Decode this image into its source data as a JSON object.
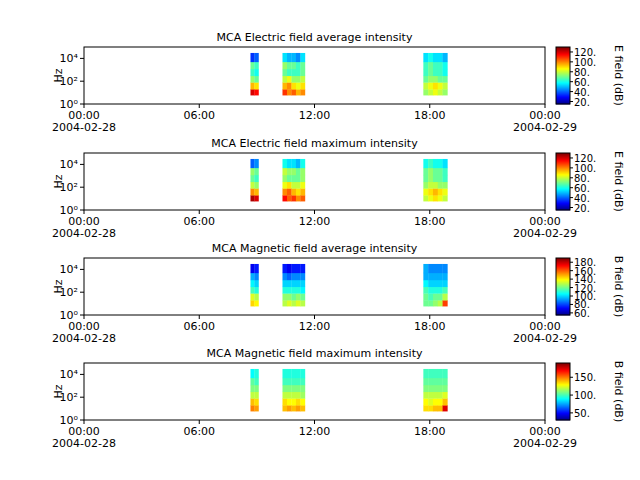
{
  "chart_data": [
    {
      "type": "heatmap",
      "title": "MCA  Electric field average intensity",
      "y_label": "Hz",
      "log": "y",
      "xlim": [
        "2004-02-28 00:00",
        "2004-02-29 00:00"
      ],
      "xticks": [
        {
          "value": "2004-02-28 00:00",
          "label": "00:00\n2004-02-28"
        },
        {
          "value": "2004-02-28 06:00",
          "label": "06:00"
        },
        {
          "value": "2004-02-28 12:00",
          "label": "12:00"
        },
        {
          "value": "2004-02-28 18:00",
          "label": "18:00"
        },
        {
          "value": "2004-02-29 00:00",
          "label": "00:00\n2004-02-29"
        }
      ],
      "ylim": [
        1,
        100000
      ],
      "yticks": [
        {
          "value": 1,
          "label": "10⁰"
        },
        {
          "value": 100,
          "label": "10²"
        },
        {
          "value": 10000,
          "label": "10⁴"
        }
      ],
      "heatmap": {
        "time_bins": [
          [
            "2004-02-28 08:40",
            "2004-02-28 08:52"
          ],
          [
            "2004-02-28 08:52",
            "2004-02-28 09:05"
          ],
          [
            "2004-02-28 10:20",
            "2004-02-28 10:34"
          ],
          [
            "2004-02-28 10:34",
            "2004-02-28 10:48"
          ],
          [
            "2004-02-28 10:48",
            "2004-02-28 11:02"
          ],
          [
            "2004-02-28 11:02",
            "2004-02-28 11:16"
          ],
          [
            "2004-02-28 11:16",
            "2004-02-28 11:30"
          ],
          [
            "2004-02-28 17:40",
            "2004-02-28 17:55"
          ],
          [
            "2004-02-28 17:55",
            "2004-02-28 18:10"
          ],
          [
            "2004-02-28 18:10",
            "2004-02-28 18:25"
          ],
          [
            "2004-02-28 18:25",
            "2004-02-28 18:40"
          ],
          [
            "2004-02-28 18:40",
            "2004-02-28 18:55"
          ]
        ],
        "freq_edges": [
          6,
          20,
          80,
          300,
          1200,
          5000,
          30000
        ],
        "values": [
          [
            120,
            95,
            75,
            65,
            70,
            35
          ],
          [
            115,
            90,
            70,
            60,
            65,
            40
          ],
          [
            110,
            95,
            80,
            70,
            75,
            55
          ],
          [
            100,
            100,
            85,
            65,
            70,
            50
          ],
          [
            105,
            90,
            75,
            65,
            70,
            50
          ],
          [
            95,
            85,
            75,
            65,
            65,
            45
          ],
          [
            100,
            90,
            80,
            70,
            70,
            55
          ],
          [
            75,
            80,
            70,
            65,
            65,
            55
          ],
          [
            80,
            85,
            75,
            70,
            70,
            60
          ],
          [
            85,
            90,
            75,
            65,
            65,
            55
          ],
          [
            80,
            85,
            70,
            65,
            65,
            55
          ],
          [
            75,
            80,
            70,
            60,
            60,
            50
          ]
        ]
      },
      "colorbar": {
        "label": "E field (dB)",
        "range": [
          15,
          130
        ],
        "ticks": [
          {
            "value": 20,
            "label": "20."
          },
          {
            "value": 40,
            "label": "40."
          },
          {
            "value": 60,
            "label": "60."
          },
          {
            "value": 80,
            "label": "80."
          },
          {
            "value": 100,
            "label": "100."
          },
          {
            "value": 120,
            "label": "120."
          }
        ]
      }
    },
    {
      "type": "heatmap",
      "title": "MCA  Electric field maximum intensity",
      "y_label": "Hz",
      "log": "y",
      "xlim": [
        "2004-02-28 00:00",
        "2004-02-29 00:00"
      ],
      "xticks": [
        {
          "value": "2004-02-28 00:00",
          "label": "00:00\n2004-02-28"
        },
        {
          "value": "2004-02-28 06:00",
          "label": "06:00"
        },
        {
          "value": "2004-02-28 12:00",
          "label": "12:00"
        },
        {
          "value": "2004-02-28 18:00",
          "label": "18:00"
        },
        {
          "value": "2004-02-29 00:00",
          "label": "00:00\n2004-02-29"
        }
      ],
      "ylim": [
        1,
        100000
      ],
      "yticks": [
        {
          "value": 1,
          "label": "10⁰"
        },
        {
          "value": 100,
          "label": "10²"
        },
        {
          "value": 10000,
          "label": "10⁴"
        }
      ],
      "heatmap": {
        "time_bins": [
          [
            "2004-02-28 08:40",
            "2004-02-28 08:52"
          ],
          [
            "2004-02-28 08:52",
            "2004-02-28 09:05"
          ],
          [
            "2004-02-28 10:20",
            "2004-02-28 10:34"
          ],
          [
            "2004-02-28 10:34",
            "2004-02-28 10:48"
          ],
          [
            "2004-02-28 10:48",
            "2004-02-28 11:02"
          ],
          [
            "2004-02-28 11:02",
            "2004-02-28 11:16"
          ],
          [
            "2004-02-28 11:16",
            "2004-02-28 11:30"
          ],
          [
            "2004-02-28 17:40",
            "2004-02-28 17:55"
          ],
          [
            "2004-02-28 17:55",
            "2004-02-28 18:10"
          ],
          [
            "2004-02-28 18:10",
            "2004-02-28 18:25"
          ],
          [
            "2004-02-28 18:25",
            "2004-02-28 18:40"
          ],
          [
            "2004-02-28 18:40",
            "2004-02-28 18:55"
          ]
        ],
        "freq_edges": [
          6,
          20,
          80,
          300,
          1200,
          5000,
          30000
        ],
        "values": [
          [
            125,
            100,
            80,
            70,
            75,
            40
          ],
          [
            120,
            95,
            75,
            65,
            70,
            45
          ],
          [
            115,
            100,
            85,
            75,
            80,
            60
          ],
          [
            105,
            105,
            90,
            70,
            75,
            55
          ],
          [
            110,
            95,
            80,
            70,
            75,
            55
          ],
          [
            100,
            90,
            80,
            70,
            70,
            50
          ],
          [
            105,
            95,
            85,
            75,
            75,
            60
          ],
          [
            80,
            85,
            75,
            70,
            70,
            60
          ],
          [
            85,
            90,
            80,
            75,
            75,
            65
          ],
          [
            90,
            95,
            80,
            70,
            70,
            60
          ],
          [
            85,
            90,
            75,
            70,
            70,
            60
          ],
          [
            80,
            85,
            75,
            65,
            65,
            55
          ]
        ]
      },
      "colorbar": {
        "label": "E field (dB)",
        "range": [
          15,
          130
        ],
        "ticks": [
          {
            "value": 20,
            "label": "20."
          },
          {
            "value": 40,
            "label": "40."
          },
          {
            "value": 60,
            "label": "60."
          },
          {
            "value": 80,
            "label": "80."
          },
          {
            "value": 100,
            "label": "100."
          },
          {
            "value": 120,
            "label": "120."
          }
        ]
      }
    },
    {
      "type": "heatmap",
      "title": "MCA  Magnetic field average intensity",
      "y_label": "Hz",
      "log": "y",
      "xlim": [
        "2004-02-28 00:00",
        "2004-02-29 00:00"
      ],
      "xticks": [
        {
          "value": "2004-02-28 00:00",
          "label": "00:00\n2004-02-28"
        },
        {
          "value": "2004-02-28 06:00",
          "label": "06:00"
        },
        {
          "value": "2004-02-28 12:00",
          "label": "12:00"
        },
        {
          "value": "2004-02-28 18:00",
          "label": "18:00"
        },
        {
          "value": "2004-02-29 00:00",
          "label": "00:00\n2004-02-29"
        }
      ],
      "ylim": [
        1,
        100000
      ],
      "yticks": [
        {
          "value": 1,
          "label": "10⁰"
        },
        {
          "value": 100,
          "label": "10²"
        },
        {
          "value": 10000,
          "label": "10⁴"
        }
      ],
      "heatmap": {
        "time_bins": [
          [
            "2004-02-28 08:40",
            "2004-02-28 08:52"
          ],
          [
            "2004-02-28 08:52",
            "2004-02-28 09:05"
          ],
          [
            "2004-02-28 10:20",
            "2004-02-28 10:34"
          ],
          [
            "2004-02-28 10:34",
            "2004-02-28 10:48"
          ],
          [
            "2004-02-28 10:48",
            "2004-02-28 11:02"
          ],
          [
            "2004-02-28 11:02",
            "2004-02-28 11:16"
          ],
          [
            "2004-02-28 11:16",
            "2004-02-28 11:30"
          ],
          [
            "2004-02-28 17:40",
            "2004-02-28 17:55"
          ],
          [
            "2004-02-28 17:55",
            "2004-02-28 18:10"
          ],
          [
            "2004-02-28 18:10",
            "2004-02-28 18:25"
          ],
          [
            "2004-02-28 18:25",
            "2004-02-28 18:40"
          ],
          [
            "2004-02-28 18:40",
            "2004-02-28 18:55"
          ]
        ],
        "freq_edges": [
          6,
          20,
          80,
          300,
          1200,
          5000,
          30000
        ],
        "values": [
          [
            145,
            135,
            115,
            105,
            95,
            70
          ],
          [
            140,
            130,
            110,
            100,
            90,
            75
          ],
          [
            130,
            125,
            110,
            100,
            90,
            75
          ],
          [
            135,
            125,
            110,
            100,
            85,
            70
          ],
          [
            130,
            120,
            110,
            100,
            90,
            75
          ],
          [
            135,
            125,
            110,
            100,
            90,
            75
          ],
          [
            130,
            120,
            105,
            100,
            90,
            75
          ],
          [
            120,
            120,
            115,
            105,
            95,
            95
          ],
          [
            120,
            115,
            110,
            100,
            95,
            90
          ],
          [
            125,
            120,
            110,
            100,
            95,
            90
          ],
          [
            130,
            120,
            110,
            100,
            95,
            90
          ],
          [
            165,
            130,
            115,
            100,
            95,
            90
          ]
        ]
      },
      "colorbar": {
        "label": "B field (dB)",
        "range": [
          55,
          190
        ],
        "ticks": [
          {
            "value": 60,
            "label": "60."
          },
          {
            "value": 80,
            "label": "80."
          },
          {
            "value": 100,
            "label": "100."
          },
          {
            "value": 120,
            "label": "120."
          },
          {
            "value": 140,
            "label": "140."
          },
          {
            "value": 160,
            "label": "160."
          },
          {
            "value": 180,
            "label": "180."
          }
        ]
      }
    },
    {
      "type": "heatmap",
      "title": "MCA  Magnetic field maximum intensity",
      "y_label": "Hz",
      "log": "y",
      "xlim": [
        "2004-02-28 00:00",
        "2004-02-29 00:00"
      ],
      "xticks": [
        {
          "value": "2004-02-28 00:00",
          "label": "00:00\n2004-02-28"
        },
        {
          "value": "2004-02-28 06:00",
          "label": "06:00"
        },
        {
          "value": "2004-02-28 12:00",
          "label": "12:00"
        },
        {
          "value": "2004-02-28 18:00",
          "label": "18:00"
        },
        {
          "value": "2004-02-29 00:00",
          "label": "00:00\n2004-02-29"
        }
      ],
      "ylim": [
        1,
        100000
      ],
      "yticks": [
        {
          "value": 1,
          "label": "10⁰"
        },
        {
          "value": 100,
          "label": "10²"
        },
        {
          "value": 10000,
          "label": "10⁴"
        }
      ],
      "heatmap": {
        "time_bins": [
          [
            "2004-02-28 08:40",
            "2004-02-28 08:52"
          ],
          [
            "2004-02-28 08:52",
            "2004-02-28 09:05"
          ],
          [
            "2004-02-28 10:20",
            "2004-02-28 10:34"
          ],
          [
            "2004-02-28 10:34",
            "2004-02-28 10:48"
          ],
          [
            "2004-02-28 10:48",
            "2004-02-28 11:02"
          ],
          [
            "2004-02-28 11:02",
            "2004-02-28 11:16"
          ],
          [
            "2004-02-28 11:16",
            "2004-02-28 11:30"
          ],
          [
            "2004-02-28 17:40",
            "2004-02-28 17:55"
          ],
          [
            "2004-02-28 17:55",
            "2004-02-28 18:10"
          ],
          [
            "2004-02-28 18:10",
            "2004-02-28 18:25"
          ],
          [
            "2004-02-28 18:25",
            "2004-02-28 18:40"
          ],
          [
            "2004-02-28 18:40",
            "2004-02-28 18:55"
          ]
        ],
        "freq_edges": [
          6,
          20,
          80,
          300,
          1200,
          5000,
          30000
        ],
        "values": [
          [
            150,
            140,
            120,
            110,
            105,
            90
          ],
          [
            145,
            135,
            120,
            110,
            100,
            95
          ],
          [
            140,
            135,
            120,
            110,
            100,
            95
          ],
          [
            145,
            130,
            120,
            110,
            100,
            95
          ],
          [
            140,
            130,
            120,
            110,
            100,
            95
          ],
          [
            145,
            135,
            120,
            110,
            100,
            95
          ],
          [
            140,
            130,
            115,
            110,
            100,
            95
          ],
          [
            135,
            130,
            120,
            110,
            105,
            100
          ],
          [
            135,
            125,
            120,
            110,
            105,
            100
          ],
          [
            140,
            130,
            120,
            110,
            105,
            100
          ],
          [
            140,
            130,
            120,
            110,
            105,
            100
          ],
          [
            175,
            140,
            125,
            110,
            105,
            100
          ]
        ]
      },
      "colorbar": {
        "label": "B field (dB)",
        "range": [
          30,
          190
        ],
        "ticks": [
          {
            "value": 50,
            "label": "50."
          },
          {
            "value": 100,
            "label": "100."
          },
          {
            "value": 150,
            "label": "150."
          }
        ]
      }
    }
  ]
}
